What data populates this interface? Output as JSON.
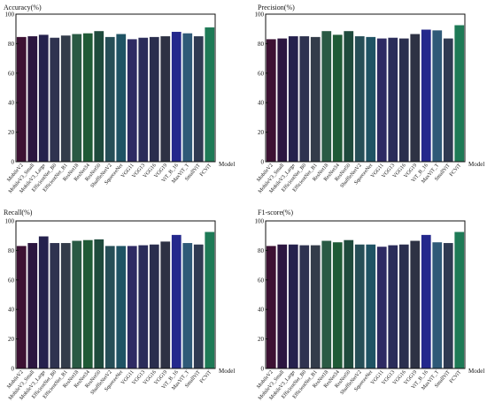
{
  "chart_data": [
    {
      "type": "bar",
      "title": "Accuracy(%)",
      "xlabel": "Model",
      "ylabel": "",
      "ylim": [
        0,
        100
      ],
      "yticks": [
        0,
        20,
        40,
        60,
        80,
        100
      ],
      "categories": [
        "MobileV2",
        "MobileV3_Small",
        "MobileV3_Large",
        "EfficientNet_B0",
        "EfficientNet_B1",
        "ResNet18",
        "ResNet34",
        "ResNet50",
        "ShuffleNetV2",
        "SqueezeNet",
        "VGG11",
        "VGG13",
        "VGG16",
        "VGG19",
        "ViT_B_16",
        "MaxViT_T",
        "SmallViT",
        "FCViT"
      ],
      "values": [
        84.5,
        85.0,
        86.0,
        84.0,
        85.5,
        86.5,
        87.0,
        88.5,
        84.5,
        86.5,
        83.0,
        84.0,
        84.5,
        85.0,
        88.0,
        87.0,
        85.0,
        91.0
      ]
    },
    {
      "type": "bar",
      "title": "Precision(%)",
      "xlabel": "Model",
      "ylabel": "",
      "ylim": [
        0,
        100
      ],
      "yticks": [
        0,
        20,
        40,
        60,
        80,
        100
      ],
      "categories": [
        "MobileV2",
        "MobileV3_Small",
        "MobileV3_Large",
        "EfficientNet_B0",
        "EfficientNet_B1",
        "ResNet18",
        "ResNet34",
        "ResNet50",
        "ShuffleNetV2",
        "SqueezeNet",
        "VGG11",
        "VGG13",
        "VGG16",
        "VGG19",
        "ViT_B_16",
        "MaxViT_T",
        "SmallViT",
        "FCViT"
      ],
      "values": [
        83.0,
        83.5,
        85.0,
        85.0,
        84.5,
        88.5,
        86.0,
        88.5,
        85.0,
        84.5,
        83.5,
        84.0,
        83.5,
        86.5,
        89.5,
        89.0,
        83.5,
        92.5
      ]
    },
    {
      "type": "bar",
      "title": "Recall(%)",
      "xlabel": "Model",
      "ylabel": "",
      "ylim": [
        0,
        100
      ],
      "yticks": [
        0,
        20,
        40,
        60,
        80,
        100
      ],
      "categories": [
        "MobileV2",
        "MobileV3_Small",
        "MobileV3_Large",
        "EfficientNet_B0",
        "EfficientNet_B1",
        "ResNet18",
        "ResNet34",
        "ResNet50",
        "ShuffleNetV2",
        "SqueezeNet",
        "VGG11",
        "VGG13",
        "VGG16",
        "VGG19",
        "ViT_B_16",
        "MaxViT_T",
        "SmallViT",
        "FCViT"
      ],
      "values": [
        83.0,
        85.0,
        89.5,
        85.0,
        85.0,
        86.5,
        87.0,
        87.5,
        83.0,
        83.0,
        83.0,
        83.5,
        84.0,
        86.0,
        90.5,
        85.0,
        84.0,
        92.5
      ]
    },
    {
      "type": "bar",
      "title": "F1-score(%)",
      "xlabel": "Model",
      "ylabel": "",
      "ylim": [
        0,
        100
      ],
      "yticks": [
        0,
        20,
        40,
        60,
        80,
        100
      ],
      "categories": [
        "MobileV2",
        "MobileV3_Small",
        "MobileV3_Large",
        "EfficientNet_B0",
        "EfficientNet_B1",
        "ResNet18",
        "ResNet34",
        "ResNet50",
        "ShuffleNetV2",
        "SqueezeNet",
        "VGG11",
        "VGG13",
        "VGG16",
        "VGG19",
        "ViT_B_16",
        "MaxViT_T",
        "SmallViT",
        "FCViT"
      ],
      "values": [
        83.0,
        84.0,
        84.0,
        83.5,
        83.5,
        86.5,
        85.5,
        87.0,
        84.0,
        84.0,
        82.5,
        83.5,
        84.0,
        86.5,
        90.5,
        85.5,
        85.0,
        92.5
      ]
    }
  ],
  "bar_colors": [
    "#3d1133",
    "#2c1640",
    "#25214d",
    "#2f3350",
    "#333c4a",
    "#2a5a44",
    "#1f5a36",
    "#1e4a3c",
    "#264e57",
    "#1f5364",
    "#2e2a63",
    "#2a2c5a",
    "#2a2e4e",
    "#2e3244",
    "#24288c",
    "#2f5a78",
    "#2f3a52",
    "#1e7a56"
  ]
}
